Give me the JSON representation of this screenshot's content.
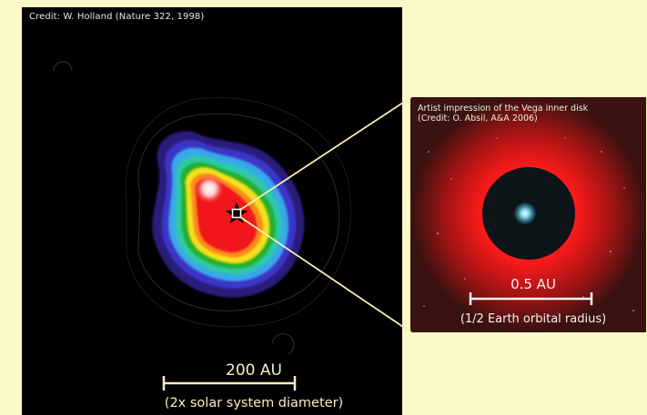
{
  "main_image": {
    "credit": "Credit: W. Holland (Nature 322, 1998)",
    "scale_label": "200 AU",
    "scale_caption": "(2x solar system diameter)"
  },
  "inset_image": {
    "title_line1": "Artist impression of the Vega inner disk",
    "title_line2": "(Credit: O. Absil, A&A 2006)",
    "scale_label": "0.5 AU",
    "scale_caption": "(1/2 Earth orbital radius)"
  },
  "colors": {
    "page_background": "#fdf8c9",
    "scale_bar": "#f3efc0",
    "connector": "#f6f0b0"
  }
}
